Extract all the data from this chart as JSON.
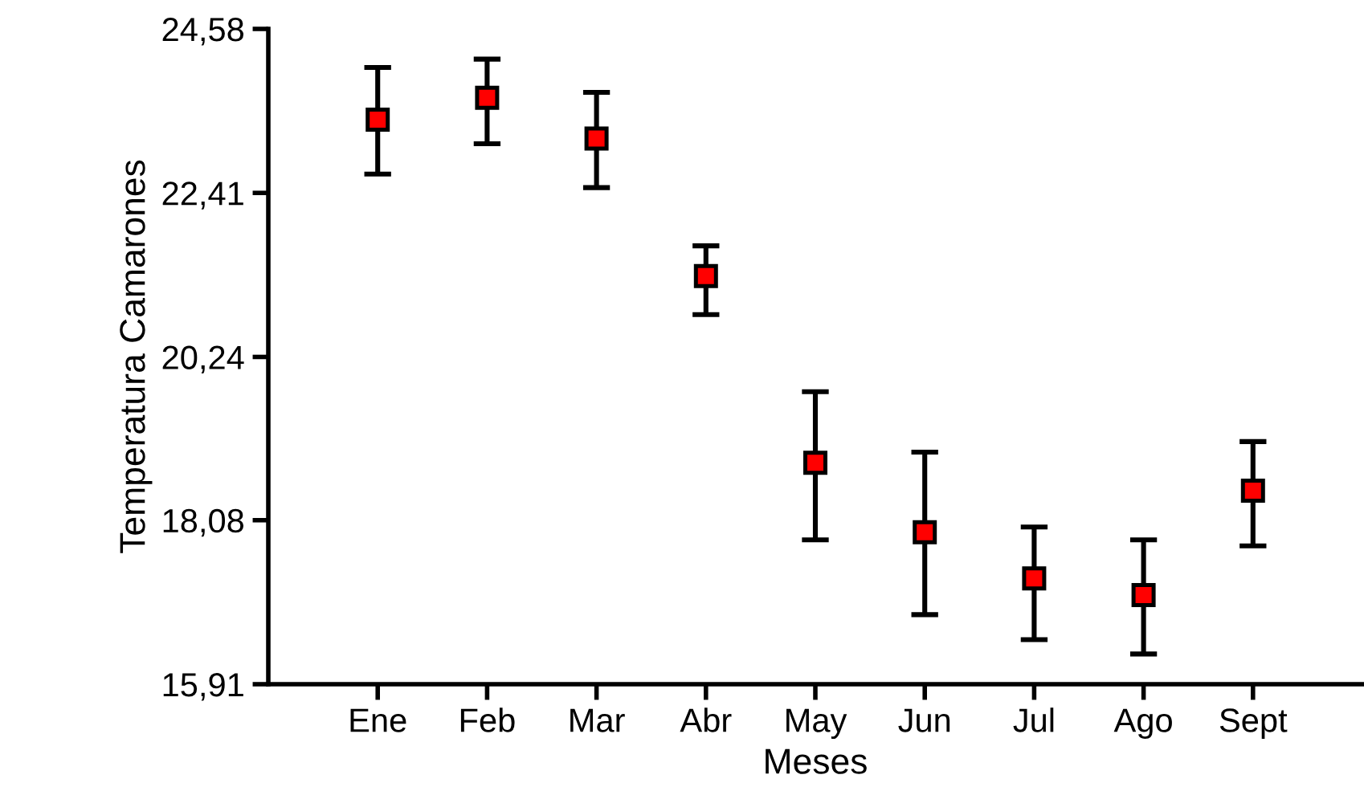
{
  "chart_data": {
    "type": "scatter",
    "xlabel": "Meses",
    "ylabel": "Temperatura Camarones",
    "categories": [
      "Ene",
      "Feb",
      "Mar",
      "Abr",
      "May",
      "Jun",
      "Jul",
      "Ago",
      "Sept"
    ],
    "series": [
      {
        "color": "#ff0000",
        "values": [
          23.38,
          23.67,
          23.13,
          21.31,
          18.84,
          17.92,
          17.31,
          17.09,
          18.47
        ],
        "errors": [
          [
            22.66,
            24.07
          ],
          [
            23.06,
            24.18
          ],
          [
            22.48,
            23.74
          ],
          [
            20.8,
            21.71
          ],
          [
            17.82,
            19.78
          ],
          [
            16.83,
            18.98
          ],
          [
            16.5,
            17.99
          ],
          [
            16.31,
            17.82
          ],
          [
            17.74,
            19.12
          ]
        ]
      }
    ],
    "ylim": [
      15.91,
      24.58
    ],
    "yticks": [
      {
        "value": 15.91,
        "label": "15,91"
      },
      {
        "value": 18.08,
        "label": "18,08"
      },
      {
        "value": 20.24,
        "label": "20,24"
      },
      {
        "value": 22.41,
        "label": "22,41"
      },
      {
        "value": 24.58,
        "label": "24,58"
      }
    ],
    "marker": "square",
    "grid": false,
    "legend": false
  }
}
